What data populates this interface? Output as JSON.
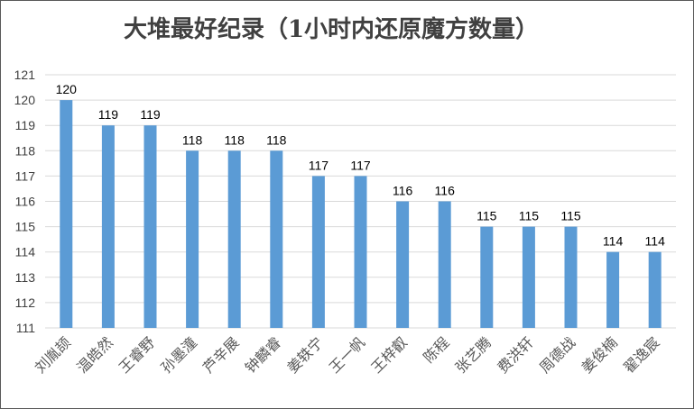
{
  "chart_data": {
    "type": "bar",
    "title": "大堆最好纪录（1小时内还原魔方数量）",
    "xlabel": "",
    "ylabel": "",
    "categories": [
      "刘胤颉",
      "温皓然",
      "王睿野",
      "孙墨潼",
      "芦辛展",
      "钟麟睿",
      "姜轶宁",
      "王一帆",
      "王梓叡",
      "陈程",
      "张艺腾",
      "费洪轩",
      "周德战",
      "姜俊楠",
      "翟逸宸"
    ],
    "values": [
      120,
      119,
      119,
      118,
      118,
      118,
      117,
      117,
      116,
      116,
      115,
      115,
      115,
      114,
      114
    ],
    "ylim": [
      111,
      121
    ],
    "yticks": [
      "111",
      "112",
      "113",
      "114",
      "115",
      "116",
      "117",
      "118",
      "119",
      "120",
      "121"
    ],
    "grid": true,
    "legend": "none",
    "colors": {
      "bar": "#5B9BD5",
      "grid": "#D9D9D9",
      "text": "#404040",
      "category_text": "#595959"
    }
  }
}
